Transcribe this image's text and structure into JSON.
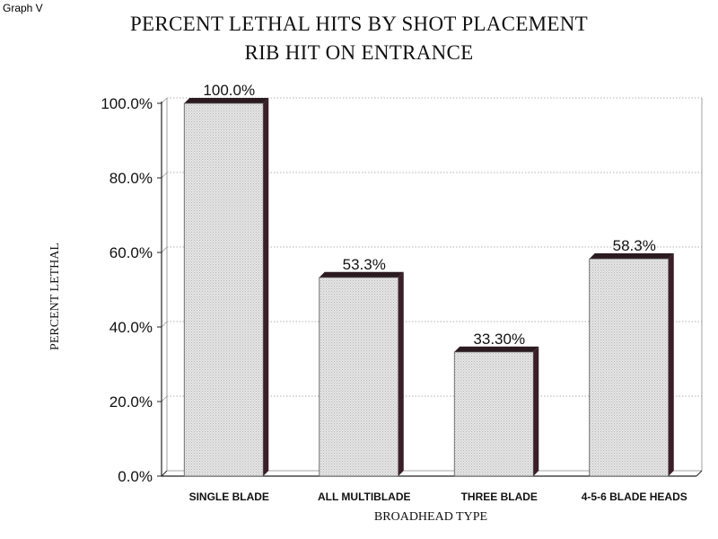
{
  "header": {
    "corner_label": "Graph V"
  },
  "chart_data": {
    "type": "bar",
    "title": "PERCENT LETHAL HITS BY SHOT PLACEMENT",
    "subtitle": "RIB HIT ON ENTRANCE",
    "xlabel": "BROADHEAD TYPE",
    "ylabel": "PERCENT LETHAL",
    "categories": [
      "SINGLE BLADE",
      "ALL MULTIBLADE",
      "THREE BLADE",
      "4-5-6 BLADE HEADS"
    ],
    "values": [
      100.0,
      53.3,
      33.3,
      58.3
    ],
    "data_labels": [
      "100.0%",
      "53.3%",
      "33.30%",
      "58.3%"
    ],
    "ylim": [
      0,
      100
    ],
    "yticks": [
      0,
      20,
      40,
      60,
      80,
      100
    ],
    "ytick_labels": [
      "0.0%",
      "20.0%",
      "40.0%",
      "60.0%",
      "80.0%",
      "100.0%"
    ],
    "grid": true,
    "legend": "none",
    "colors": {
      "bar_face": "#dcdcdc",
      "bar_side": "#3a1f28",
      "bar_top": "#2b1a20",
      "grid": "#9a9a9a",
      "axis": "#222222"
    }
  }
}
